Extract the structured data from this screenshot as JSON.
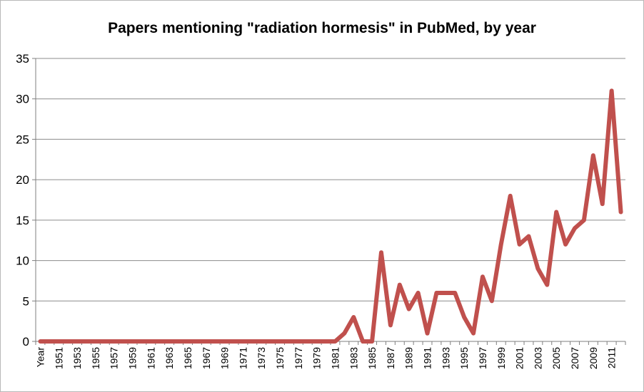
{
  "chart_data": {
    "type": "line",
    "title": "Papers mentioning \"radiation hormesis\" in PubMed, by year",
    "xlabel": "",
    "ylabel": "",
    "ylim": [
      0,
      35
    ],
    "yticks": [
      0,
      5,
      10,
      15,
      20,
      25,
      30,
      35
    ],
    "grid": true,
    "legend": "none",
    "categories": [
      "Year",
      "1950",
      "1951",
      "1952",
      "1953",
      "1954",
      "1955",
      "1956",
      "1957",
      "1958",
      "1959",
      "1960",
      "1961",
      "1962",
      "1963",
      "1964",
      "1965",
      "1966",
      "1967",
      "1968",
      "1969",
      "1970",
      "1971",
      "1972",
      "1973",
      "1974",
      "1975",
      "1976",
      "1977",
      "1978",
      "1979",
      "1980",
      "1981",
      "1982",
      "1983",
      "1984",
      "1985",
      "1986",
      "1987",
      "1988",
      "1989",
      "1990",
      "1991",
      "1992",
      "1993",
      "1994",
      "1995",
      "1996",
      "1997",
      "1998",
      "1999",
      "2000",
      "2001",
      "2002",
      "2003",
      "2004",
      "2005",
      "2006",
      "2007",
      "2008",
      "2009",
      "2010",
      "2011",
      "2012"
    ],
    "visible_tick_labels": [
      "Year",
      "1951",
      "1953",
      "1955",
      "1957",
      "1959",
      "1961",
      "1963",
      "1965",
      "1967",
      "1969",
      "1971",
      "1973",
      "1975",
      "1977",
      "1979",
      "1981",
      "1983",
      "1985",
      "1987",
      "1989",
      "1991",
      "1993",
      "1995",
      "1997",
      "1999",
      "2001",
      "2003",
      "2005",
      "2007",
      "2009",
      "2011"
    ],
    "series": [
      {
        "name": "Papers",
        "color": "#C0504D",
        "values": [
          0,
          0,
          0,
          0,
          0,
          0,
          0,
          0,
          0,
          0,
          0,
          0,
          0,
          0,
          0,
          0,
          0,
          0,
          0,
          0,
          0,
          0,
          0,
          0,
          0,
          0,
          0,
          0,
          0,
          0,
          0,
          0,
          0,
          1,
          3,
          0,
          0,
          11,
          2,
          7,
          4,
          6,
          1,
          6,
          6,
          6,
          3,
          1,
          8,
          5,
          12,
          18,
          12,
          13,
          9,
          7,
          16,
          12,
          14,
          15,
          23,
          17,
          31,
          16
        ]
      }
    ]
  }
}
